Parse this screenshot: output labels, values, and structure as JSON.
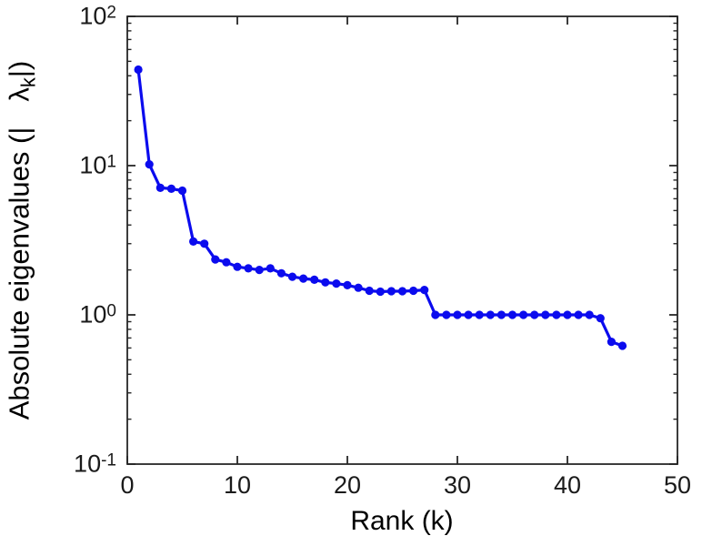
{
  "figure": {
    "background": "#ffffff",
    "axis_color": "#262626",
    "text_color": "#000000"
  },
  "chart_data": {
    "type": "line",
    "title": "",
    "xlabel": "Rank (k)",
    "ylabel": {
      "prefix": "Absolute eigenvalues (|",
      "symbol": "λ",
      "subscript": "k",
      "suffix": "|)"
    },
    "yscale": "log",
    "xlim": [
      0,
      50
    ],
    "ylim": [
      0.1,
      100
    ],
    "x_ticks": [
      0,
      10,
      20,
      30,
      40,
      50
    ],
    "y_tick_base": 10,
    "y_tick_exponents": [
      2,
      1,
      0,
      -1
    ],
    "grid": false,
    "legend": null,
    "line_color": "#0b0bee",
    "marker": "circle",
    "series_name": "absolute-eigenvalues",
    "x": [
      1,
      2,
      3,
      4,
      5,
      6,
      7,
      8,
      9,
      10,
      11,
      12,
      13,
      14,
      15,
      16,
      17,
      18,
      19,
      20,
      21,
      22,
      23,
      24,
      25,
      26,
      27,
      28,
      29,
      30,
      31,
      32,
      33,
      34,
      35,
      36,
      37,
      38,
      39,
      40,
      41,
      42,
      43,
      44,
      45
    ],
    "y": [
      44,
      10.2,
      7.1,
      7.0,
      6.8,
      3.1,
      3.0,
      2.35,
      2.25,
      2.1,
      2.05,
      2.0,
      2.05,
      1.9,
      1.8,
      1.75,
      1.72,
      1.65,
      1.62,
      1.58,
      1.52,
      1.45,
      1.43,
      1.44,
      1.44,
      1.45,
      1.47,
      1.0,
      1.0,
      1.0,
      1.0,
      1.0,
      1.0,
      1.0,
      1.0,
      1.0,
      1.0,
      1.0,
      1.0,
      1.0,
      1.0,
      1.0,
      0.95,
      0.66,
      0.62
    ]
  }
}
